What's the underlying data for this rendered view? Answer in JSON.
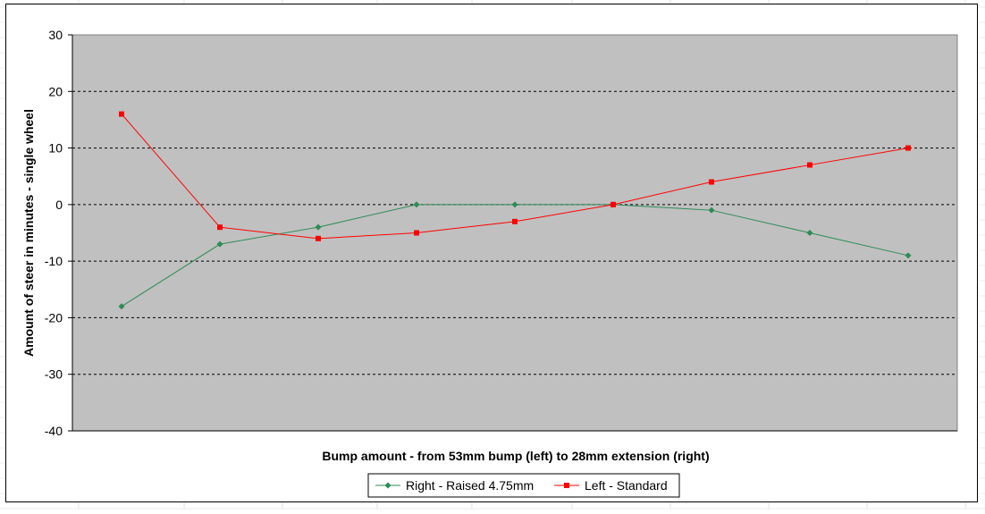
{
  "chart_data": {
    "type": "line",
    "title": "",
    "xlabel": "Bump amount - from 53mm bump (left) to 28mm extension (right)",
    "ylabel": "Amount of steer in minutes - single wheel",
    "ylim": [
      -40,
      30
    ],
    "yticks": [
      30,
      20,
      10,
      0,
      -10,
      -20,
      -30,
      -40
    ],
    "x": [
      1,
      2,
      3,
      4,
      5,
      6,
      7,
      8,
      9
    ],
    "grid": "horizontal-dashed",
    "legend": "bottom-center",
    "series": [
      {
        "name": "Right - Raised 4.75mm",
        "color": "#2e8b57",
        "marker": "diamond",
        "values": [
          -18,
          -7,
          -4,
          0,
          0,
          0,
          -1,
          -5,
          -9
        ]
      },
      {
        "name": "Left - Standard",
        "color": "#ff0000",
        "marker": "square",
        "values": [
          16,
          -4,
          -6,
          -5,
          -3,
          0,
          4,
          7,
          10
        ]
      }
    ],
    "plot_background": "#c0c0c0"
  }
}
